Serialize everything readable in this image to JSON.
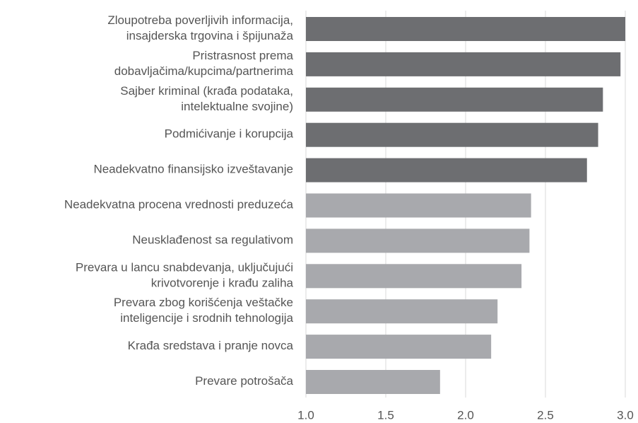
{
  "chart_data": {
    "type": "barh",
    "categories": [
      "Zloupotreba poverljivih informacija,\ninsajderska trgovina i špijunaža",
      "Pristrasnost prema\ndobavljačima/kupcima/partnerima",
      "Sajber kriminal (krađa podataka,\nintelektualne svojine)",
      "Podmićivanje i korupcija",
      "Neadekvatno finansijsko izveštavanje",
      "Neadekvatna procena vrednosti preduzeća",
      "Neusklađenost sa regulativom",
      "Prevara u lancu snabdevanja, uključujući\nkrivotvorenje i krađu zaliha",
      "Prevara zbog korišćenja veštačke\ninteligencije i srodnih tehnologija",
      "Krađa sredstava i pranje novca",
      "Prevare potrošača"
    ],
    "values": [
      3.0,
      2.97,
      2.86,
      2.83,
      2.76,
      2.41,
      2.4,
      2.35,
      2.2,
      2.16,
      1.84
    ],
    "colors": [
      "#6d6e71",
      "#6d6e71",
      "#6d6e71",
      "#6d6e71",
      "#6d6e71",
      "#a8a9ad",
      "#a8a9ad",
      "#a8a9ad",
      "#a8a9ad",
      "#a8a9ad",
      "#a8a9ad"
    ],
    "xlim": [
      1.0,
      3.0
    ],
    "xticks": [
      {
        "value": 1.0,
        "label": "1.0"
      },
      {
        "value": 1.5,
        "label": "1.5"
      },
      {
        "value": 2.0,
        "label": "2.0"
      },
      {
        "value": 2.5,
        "label": "2.5"
      },
      {
        "value": 3.0,
        "label": "3.0"
      }
    ],
    "grid": true
  }
}
